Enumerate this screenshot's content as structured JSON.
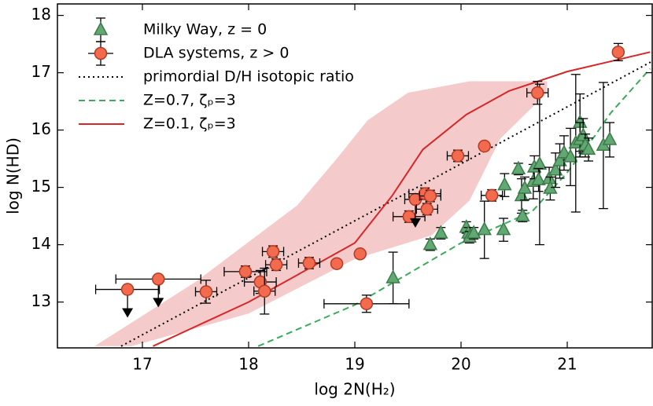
{
  "chart_data": {
    "type": "scatter",
    "xlabel": "log 2N(H₂)",
    "ylabel": "log N(HD)",
    "xlim": [
      16.2,
      21.8
    ],
    "ylim": [
      12.2,
      18.2
    ],
    "xticks": [
      17,
      18,
      19,
      20,
      21
    ],
    "yticks": [
      13,
      14,
      15,
      16,
      17,
      18
    ],
    "legend": "upper left",
    "band": {
      "color": "#f5caca",
      "upper_x": [
        16.55,
        17.5,
        18.46,
        18.83,
        19.12,
        19.5,
        20.08,
        20.81
      ],
      "upper_y": [
        12.23,
        13.35,
        14.69,
        15.5,
        16.17,
        16.65,
        16.85,
        16.85
      ],
      "lower_x": [
        16.9,
        18.0,
        19.0,
        19.72,
        20.08,
        20.37,
        20.81
      ],
      "lower_y": [
        12.23,
        12.8,
        13.75,
        14.16,
        14.77,
        15.85,
        16.65
      ]
    },
    "series": [
      {
        "name": "Milky Way, z = 0",
        "type": "scatter",
        "marker": "triangle",
        "color": "#62a872",
        "x": [
          19.36,
          19.71,
          19.81,
          20.05,
          20.07,
          20.08,
          20.12,
          20.22,
          20.4,
          20.41,
          20.54,
          20.57,
          20.58,
          20.6,
          20.68,
          20.69,
          20.74,
          20.73,
          20.83,
          20.84,
          20.89,
          20.93,
          20.97,
          21.03,
          21.08,
          21.12,
          21.12,
          21.15,
          21.17,
          21.2,
          21.34,
          21.4
        ],
        "values": [
          13.42,
          14.0,
          14.2,
          14.3,
          14.2,
          14.13,
          14.2,
          14.26,
          14.26,
          15.04,
          15.32,
          14.85,
          14.5,
          14.98,
          15.1,
          15.35,
          15.4,
          15.13,
          15.15,
          14.98,
          15.3,
          15.46,
          15.6,
          15.53,
          15.77,
          16.13,
          15.83,
          15.9,
          15.73,
          15.66,
          15.73,
          15.83
        ],
        "yerr": [
          0.45,
          0.1,
          0.1,
          0.1,
          0.1,
          0.1,
          0.1,
          0.5,
          0.2,
          0.2,
          0.1,
          0.3,
          0.1,
          0.2,
          0.3,
          0.2,
          1.4,
          0.2,
          0.2,
          0.2,
          0.3,
          0.3,
          0.3,
          0.5,
          1.2,
          0.5,
          0.3,
          0.3,
          0.2,
          0.2,
          1.1,
          0.3
        ]
      },
      {
        "name": "DLA systems, z > 0",
        "type": "scatter",
        "marker": "circle",
        "color": "#f26b4f",
        "x": [
          16.86,
          17.15,
          17.6,
          17.97,
          18.11,
          18.15,
          18.23,
          18.26,
          18.57,
          18.83,
          19.05,
          19.11,
          19.51,
          19.57,
          19.66,
          19.68,
          19.71,
          19.97,
          20.22,
          20.29,
          20.72,
          21.48
        ],
        "values": [
          13.22,
          13.4,
          13.18,
          13.53,
          13.35,
          13.19,
          13.88,
          13.65,
          13.68,
          13.67,
          13.84,
          12.97,
          14.49,
          14.79,
          14.89,
          14.62,
          14.85,
          15.55,
          15.72,
          14.86,
          16.65,
          17.36
        ],
        "xerr": [
          0.3,
          0.4,
          0.1,
          0.2,
          0.15,
          0.1,
          0.1,
          0.1,
          0.1,
          null,
          null,
          0.4,
          0.15,
          0.1,
          0.15,
          0.1,
          0.1,
          0.1,
          null,
          0.1,
          0.1,
          null
        ],
        "yerr": [
          null,
          null,
          0.2,
          0.1,
          0.2,
          0.4,
          0.1,
          0.1,
          0.1,
          null,
          null,
          0.15,
          0.1,
          null,
          0.1,
          0.1,
          0.1,
          0.1,
          null,
          0.1,
          0.2,
          0.15
        ],
        "upper_limit": [
          true,
          true,
          false,
          false,
          false,
          false,
          false,
          false,
          false,
          false,
          false,
          false,
          false,
          true,
          false,
          false,
          false,
          false,
          false,
          false,
          false,
          false
        ]
      },
      {
        "name": "primordial D/H isotopic ratio",
        "type": "line",
        "style": "dotted",
        "color": "#000000",
        "x": [
          16.8,
          21.8
        ],
        "values": [
          12.23,
          17.2
        ]
      },
      {
        "name": "Z=0.7, ζₚ=3",
        "type": "line",
        "style": "dashed",
        "color": "#3aaa5c",
        "x": [
          18.09,
          19.0,
          20.0,
          20.67,
          21.0,
          21.26,
          21.41,
          21.78
        ],
        "values": [
          12.23,
          12.95,
          14.03,
          14.58,
          15.26,
          15.9,
          16.3,
          17.07
        ]
      },
      {
        "name": "Z=0.1, ζₚ=3",
        "type": "line",
        "style": "solid",
        "color": "#d62728",
        "x": [
          17.1,
          18.0,
          19.0,
          19.35,
          19.64,
          20.05,
          20.45,
          21.0,
          21.78
        ],
        "values": [
          12.23,
          13.0,
          14.03,
          14.85,
          15.66,
          16.27,
          16.68,
          17.02,
          17.36
        ]
      }
    ]
  }
}
